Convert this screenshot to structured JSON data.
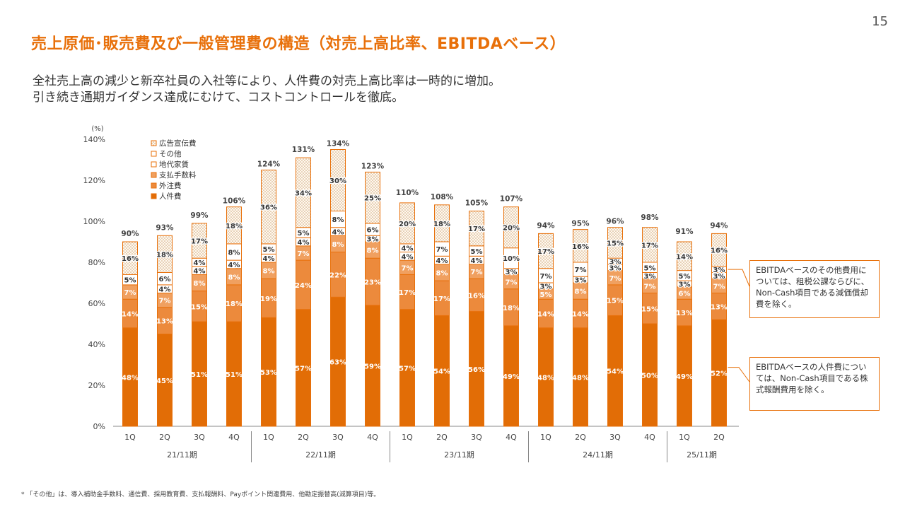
{
  "page_number": "15",
  "title": "売上原価･販売費及び一般管理費の構造（対売上高比率、EBITDAベース）",
  "lead": [
    "全社売上高の減少と新卒社員の入社等により、人件費の対売上高比率は一時的に増加。",
    "引き続き通期ガイダンス達成にむけて、コストコントロールを徹底。"
  ],
  "notes": {
    "other": "EBITDAベースのその他費用については、租税公課ならびに、Non-Cash項目である減価償却費を除く。",
    "personnel": "EBITDAベースの人件費については、Non-Cash項目である株式報酬費用を除く。"
  },
  "footnote": "* 「その他」は、導入補助金手数料、通信費、採用教育費、支払報酬料、Payポイント関連費用、他勘定振替高(減算項目)等。",
  "colors": {
    "accent": "#e8700a",
    "personnel": "#e26d06",
    "outsourcing": "#ec8a3c",
    "fees": "#f0a060",
    "rent": "#ffffff",
    "other": "#ffffff",
    "ad": "#f7c89a"
  },
  "chart_data": {
    "type": "bar",
    "stacked": true,
    "y_unit": "(%)",
    "ylim": [
      0,
      140
    ],
    "yticks": [
      "0%",
      "20%",
      "40%",
      "60%",
      "80%",
      "100%",
      "120%",
      "140%"
    ],
    "categories": [
      "1Q",
      "2Q",
      "3Q",
      "4Q",
      "1Q",
      "2Q",
      "3Q",
      "4Q",
      "1Q",
      "2Q",
      "3Q",
      "4Q",
      "1Q",
      "2Q",
      "3Q",
      "4Q",
      "1Q",
      "2Q"
    ],
    "groups": [
      {
        "label": "21/11期",
        "count": 4
      },
      {
        "label": "22/11期",
        "count": 4
      },
      {
        "label": "23/11期",
        "count": 4
      },
      {
        "label": "24/11期",
        "count": 4
      },
      {
        "label": "25/11期",
        "count": 2
      }
    ],
    "totals": [
      "90%",
      "93%",
      "99%",
      "106%",
      "124%",
      "131%",
      "134%",
      "123%",
      "110%",
      "108%",
      "105%",
      "107%",
      "94%",
      "95%",
      "96%",
      "98%",
      "91%",
      "94%"
    ],
    "series": [
      {
        "name": "人件費",
        "values": [
          48,
          45,
          51,
          51,
          53,
          57,
          63,
          59,
          57,
          54,
          56,
          49,
          48,
          48,
          54,
          50,
          49,
          52
        ]
      },
      {
        "name": "外注費",
        "values": [
          14,
          13,
          15,
          18,
          19,
          24,
          22,
          23,
          17,
          17,
          16,
          18,
          14,
          14,
          15,
          15,
          13,
          13
        ]
      },
      {
        "name": "支払手数料",
        "values": [
          7,
          7,
          8,
          8,
          8,
          7,
          8,
          8,
          7,
          8,
          7,
          7,
          5,
          8,
          7,
          7,
          6,
          7
        ]
      },
      {
        "name": "地代家賃",
        "values": [
          5,
          4,
          4,
          4,
          4,
          4,
          4,
          3,
          4,
          4,
          4,
          3,
          3,
          3,
          3,
          3,
          3,
          3
        ]
      },
      {
        "name": "その他",
        "values": [
          0,
          6,
          4,
          8,
          5,
          5,
          8,
          6,
          4,
          7,
          5,
          10,
          7,
          7,
          3,
          5,
          5,
          3
        ]
      },
      {
        "name": "広告宣伝費",
        "values": [
          16,
          18,
          17,
          18,
          36,
          34,
          30,
          25,
          20,
          18,
          17,
          20,
          17,
          16,
          15,
          17,
          14,
          16
        ]
      }
    ],
    "legend_order": [
      "広告宣伝費",
      "その他",
      "地代家賃",
      "支払手数料",
      "外注費",
      "人件費"
    ],
    "legend_position": "top-left"
  }
}
